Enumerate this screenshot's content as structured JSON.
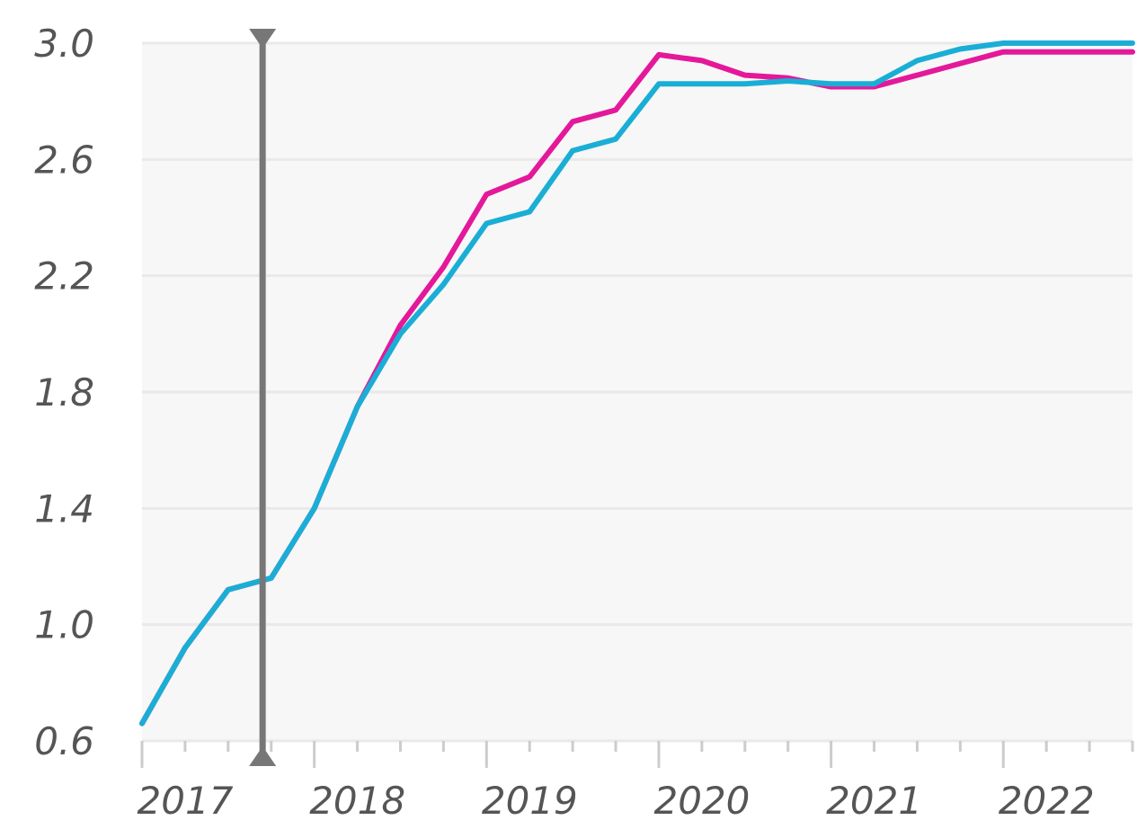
{
  "chart_data": {
    "type": "line",
    "title": "",
    "xlabel": "",
    "ylabel": "",
    "x_tick_labels": [
      "2017",
      "2018",
      "2019",
      "2020",
      "2021",
      "2022"
    ],
    "x_tick_values": [
      2017,
      2018,
      2019,
      2020,
      2021,
      2022
    ],
    "y_tick_labels": [
      "0.6",
      "1.0",
      "1.4",
      "1.8",
      "2.2",
      "2.6",
      "3.0"
    ],
    "y_tick_values": [
      0.6,
      1.0,
      1.4,
      1.8,
      2.2,
      2.6,
      3.0
    ],
    "xlim": [
      2017,
      2022.75
    ],
    "ylim": [
      0.6,
      3.0
    ],
    "grid": true,
    "legend": "none",
    "colors": {
      "plot_background": "#f7f7f7",
      "grid": "#e9e9e9",
      "marker_line": "#777777"
    },
    "marker": {
      "x": 2017.7
    },
    "series": [
      {
        "color": "#e4189a",
        "points": [
          [
            2017.0,
            0.66
          ],
          [
            2017.25,
            0.92
          ],
          [
            2017.5,
            1.12
          ],
          [
            2017.75,
            1.16
          ],
          [
            2018.0,
            1.4
          ],
          [
            2018.25,
            1.75
          ],
          [
            2018.5,
            2.03
          ],
          [
            2018.75,
            2.23
          ],
          [
            2019.0,
            2.48
          ],
          [
            2019.25,
            2.54
          ],
          [
            2019.5,
            2.73
          ],
          [
            2019.75,
            2.77
          ],
          [
            2020.0,
            2.96
          ],
          [
            2020.25,
            2.94
          ],
          [
            2020.5,
            2.89
          ],
          [
            2020.75,
            2.88
          ],
          [
            2021.0,
            2.85
          ],
          [
            2021.25,
            2.85
          ],
          [
            2021.5,
            2.89
          ],
          [
            2021.75,
            2.93
          ],
          [
            2022.0,
            2.97
          ],
          [
            2022.25,
            2.97
          ],
          [
            2022.5,
            2.97
          ],
          [
            2022.75,
            2.97
          ]
        ]
      },
      {
        "color": "#1aaed6",
        "points": [
          [
            2017.0,
            0.66
          ],
          [
            2017.25,
            0.92
          ],
          [
            2017.5,
            1.12
          ],
          [
            2017.75,
            1.16
          ],
          [
            2018.0,
            1.4
          ],
          [
            2018.25,
            1.75
          ],
          [
            2018.5,
            2.0
          ],
          [
            2018.75,
            2.17
          ],
          [
            2019.0,
            2.38
          ],
          [
            2019.25,
            2.42
          ],
          [
            2019.5,
            2.63
          ],
          [
            2019.75,
            2.67
          ],
          [
            2020.0,
            2.86
          ],
          [
            2020.25,
            2.86
          ],
          [
            2020.5,
            2.86
          ],
          [
            2020.75,
            2.87
          ],
          [
            2021.0,
            2.86
          ],
          [
            2021.25,
            2.86
          ],
          [
            2021.5,
            2.94
          ],
          [
            2021.75,
            2.98
          ],
          [
            2022.0,
            3.0
          ],
          [
            2022.25,
            3.0
          ],
          [
            2022.5,
            3.0
          ],
          [
            2022.75,
            3.0
          ]
        ]
      }
    ]
  }
}
